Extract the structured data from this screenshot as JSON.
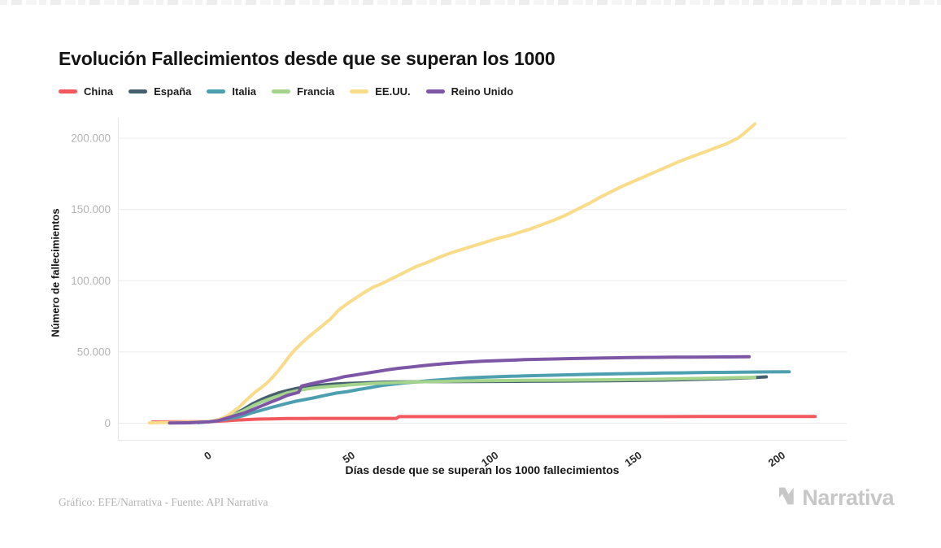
{
  "chart_data": {
    "type": "line",
    "title": "Evolución Fallecimientos desde que se superan los 1000",
    "xlabel": "Días desde que se superan los 1000 fallecimientos",
    "ylabel": "Número de fallecimientos",
    "xlim": [
      -32,
      222
    ],
    "ylim": [
      0,
      212000
    ],
    "grid": true,
    "legend_position": "top-left",
    "xticks": [
      0,
      50,
      100,
      150,
      200
    ],
    "yticks": [
      {
        "value": 0,
        "label": "0"
      },
      {
        "value": 50000,
        "label": "50.000"
      },
      {
        "value": 100000,
        "label": "100.000"
      },
      {
        "value": 150000,
        "label": "150.000"
      },
      {
        "value": 200000,
        "label": "200.000"
      }
    ],
    "series": [
      {
        "name": "China",
        "color": "#f2595f",
        "points": [
          [
            -20,
            800
          ],
          [
            -16,
            900
          ],
          [
            -12,
            950
          ],
          [
            -8,
            1000
          ],
          [
            -4,
            1050
          ],
          [
            0,
            1150
          ],
          [
            3,
            1400
          ],
          [
            6,
            1700
          ],
          [
            9,
            2100
          ],
          [
            12,
            2450
          ],
          [
            15,
            2700
          ],
          [
            18,
            2900
          ],
          [
            21,
            3050
          ],
          [
            24,
            3160
          ],
          [
            27,
            3240
          ],
          [
            30,
            3300
          ],
          [
            34,
            3330
          ],
          [
            40,
            3340
          ],
          [
            48,
            3340
          ],
          [
            56,
            3340
          ],
          [
            65,
            3340
          ],
          [
            66,
            4640
          ],
          [
            72,
            4640
          ],
          [
            80,
            4640
          ],
          [
            90,
            4640
          ],
          [
            100,
            4640
          ],
          [
            110,
            4640
          ],
          [
            120,
            4640
          ],
          [
            130,
            4640
          ],
          [
            140,
            4650
          ],
          [
            150,
            4650
          ],
          [
            160,
            4650
          ],
          [
            170,
            4660
          ],
          [
            180,
            4670
          ],
          [
            190,
            4690
          ],
          [
            200,
            4720
          ],
          [
            211,
            4750
          ]
        ]
      },
      {
        "name": "España",
        "color": "#44606e",
        "points": [
          [
            -8,
            300
          ],
          [
            -4,
            600
          ],
          [
            0,
            1100
          ],
          [
            3,
            2200
          ],
          [
            6,
            4100
          ],
          [
            9,
            6800
          ],
          [
            12,
            10000
          ],
          [
            15,
            13700
          ],
          [
            18,
            16600
          ],
          [
            21,
            19100
          ],
          [
            24,
            21300
          ],
          [
            27,
            22900
          ],
          [
            30,
            24300
          ],
          [
            33,
            25300
          ],
          [
            36,
            26100
          ],
          [
            40,
            26900
          ],
          [
            44,
            27500
          ],
          [
            48,
            27900
          ],
          [
            52,
            28200
          ],
          [
            56,
            28500
          ],
          [
            60,
            28750
          ],
          [
            65,
            28950
          ],
          [
            70,
            29050
          ],
          [
            80,
            29150
          ],
          [
            90,
            29250
          ],
          [
            100,
            29350
          ],
          [
            110,
            29450
          ],
          [
            120,
            29550
          ],
          [
            130,
            29650
          ],
          [
            140,
            29800
          ],
          [
            150,
            30000
          ],
          [
            158,
            30250
          ],
          [
            165,
            30550
          ],
          [
            172,
            30900
          ],
          [
            179,
            31300
          ],
          [
            184,
            31600
          ],
          [
            188,
            31900
          ],
          [
            191,
            32200
          ],
          [
            194,
            32500
          ]
        ]
      },
      {
        "name": "Italia",
        "color": "#4d9fb0",
        "points": [
          [
            -4,
            400
          ],
          [
            0,
            1000
          ],
          [
            3,
            1800
          ],
          [
            6,
            2900
          ],
          [
            9,
            4000
          ],
          [
            12,
            5500
          ],
          [
            15,
            7500
          ],
          [
            18,
            9100
          ],
          [
            21,
            10800
          ],
          [
            24,
            12400
          ],
          [
            27,
            13900
          ],
          [
            30,
            15400
          ],
          [
            33,
            16550
          ],
          [
            36,
            17700
          ],
          [
            40,
            19450
          ],
          [
            44,
            21100
          ],
          [
            48,
            22200
          ],
          [
            52,
            23700
          ],
          [
            56,
            25000
          ],
          [
            60,
            26400
          ],
          [
            64,
            27400
          ],
          [
            68,
            28300
          ],
          [
            72,
            29000
          ],
          [
            76,
            29800
          ],
          [
            80,
            30400
          ],
          [
            85,
            31100
          ],
          [
            90,
            31800
          ],
          [
            95,
            32250
          ],
          [
            100,
            32600
          ],
          [
            105,
            32900
          ],
          [
            110,
            33200
          ],
          [
            116,
            33500
          ],
          [
            122,
            33800
          ],
          [
            128,
            34100
          ],
          [
            134,
            34400
          ],
          [
            140,
            34600
          ],
          [
            146,
            34800
          ],
          [
            152,
            35000
          ],
          [
            158,
            35200
          ],
          [
            164,
            35350
          ],
          [
            170,
            35500
          ],
          [
            176,
            35650
          ],
          [
            182,
            35750
          ],
          [
            188,
            35900
          ],
          [
            195,
            36000
          ],
          [
            202,
            36100
          ]
        ]
      },
      {
        "name": "Francia",
        "color": "#a4d38c",
        "points": [
          [
            -2,
            700
          ],
          [
            0,
            1100
          ],
          [
            3,
            2300
          ],
          [
            6,
            4000
          ],
          [
            9,
            6500
          ],
          [
            12,
            8900
          ],
          [
            15,
            12200
          ],
          [
            18,
            14900
          ],
          [
            21,
            17200
          ],
          [
            24,
            19300
          ],
          [
            27,
            21300
          ],
          [
            30,
            22600
          ],
          [
            34,
            24100
          ],
          [
            38,
            25100
          ],
          [
            42,
            25800
          ],
          [
            46,
            26400
          ],
          [
            50,
            27100
          ],
          [
            54,
            27500
          ],
          [
            58,
            28000
          ],
          [
            62,
            28300
          ],
          [
            66,
            28600
          ],
          [
            70,
            28900
          ],
          [
            75,
            29100
          ],
          [
            80,
            29300
          ],
          [
            85,
            29500
          ],
          [
            90,
            29700
          ],
          [
            95,
            29800
          ],
          [
            100,
            29900
          ],
          [
            110,
            30100
          ],
          [
            120,
            30200
          ],
          [
            130,
            30300
          ],
          [
            140,
            30450
          ],
          [
            148,
            30650
          ],
          [
            156,
            30900
          ],
          [
            164,
            31150
          ],
          [
            172,
            31450
          ],
          [
            180,
            31800
          ],
          [
            185,
            32000
          ],
          [
            190,
            32200
          ]
        ]
      },
      {
        "name": "EE.UU.",
        "color": "#f8dc8a",
        "points": [
          [
            -21,
            250
          ],
          [
            -17,
            400
          ],
          [
            -13,
            550
          ],
          [
            -9,
            700
          ],
          [
            -5,
            850
          ],
          [
            0,
            1200
          ],
          [
            2,
            2000
          ],
          [
            4,
            3200
          ],
          [
            6,
            5100
          ],
          [
            8,
            7900
          ],
          [
            10,
            10900
          ],
          [
            12,
            14700
          ],
          [
            14,
            18600
          ],
          [
            16,
            22100
          ],
          [
            18,
            25000
          ],
          [
            20,
            28300
          ],
          [
            22,
            32400
          ],
          [
            24,
            37100
          ],
          [
            26,
            42300
          ],
          [
            28,
            47700
          ],
          [
            30,
            52200
          ],
          [
            33,
            58000
          ],
          [
            36,
            63200
          ],
          [
            39,
            68000
          ],
          [
            42,
            73000
          ],
          [
            45,
            79500
          ],
          [
            48,
            84000
          ],
          [
            51,
            88000
          ],
          [
            54,
            92000
          ],
          [
            57,
            95500
          ],
          [
            60,
            98000
          ],
          [
            63,
            101000
          ],
          [
            66,
            104000
          ],
          [
            69,
            107000
          ],
          [
            72,
            110000
          ],
          [
            76,
            113000
          ],
          [
            80,
            116500
          ],
          [
            84,
            119500
          ],
          [
            88,
            122000
          ],
          [
            92,
            124500
          ],
          [
            96,
            127000
          ],
          [
            100,
            129500
          ],
          [
            104,
            131500
          ],
          [
            108,
            134000
          ],
          [
            112,
            136500
          ],
          [
            116,
            139500
          ],
          [
            120,
            142500
          ],
          [
            124,
            146000
          ],
          [
            128,
            150000
          ],
          [
            132,
            154000
          ],
          [
            136,
            158500
          ],
          [
            140,
            162500
          ],
          [
            144,
            166500
          ],
          [
            148,
            170000
          ],
          [
            152,
            173500
          ],
          [
            156,
            177000
          ],
          [
            160,
            180500
          ],
          [
            164,
            184000
          ],
          [
            168,
            187000
          ],
          [
            172,
            190000
          ],
          [
            176,
            193000
          ],
          [
            180,
            196000
          ],
          [
            184,
            200000
          ],
          [
            186,
            203000
          ],
          [
            188,
            206500
          ],
          [
            190,
            210000
          ]
        ]
      },
      {
        "name": "Reino Unido",
        "color": "#7d56a5",
        "points": [
          [
            -14,
            150
          ],
          [
            -10,
            250
          ],
          [
            -7,
            350
          ],
          [
            -4,
            600
          ],
          [
            0,
            1000
          ],
          [
            3,
            1800
          ],
          [
            6,
            3600
          ],
          [
            9,
            5400
          ],
          [
            12,
            7100
          ],
          [
            15,
            9600
          ],
          [
            18,
            12100
          ],
          [
            21,
            14600
          ],
          [
            24,
            16900
          ],
          [
            27,
            19500
          ],
          [
            30,
            21100
          ],
          [
            31,
            21700
          ],
          [
            32,
            26100
          ],
          [
            35,
            27500
          ],
          [
            38,
            28900
          ],
          [
            41,
            30100
          ],
          [
            44,
            31200
          ],
          [
            47,
            32700
          ],
          [
            50,
            33600
          ],
          [
            54,
            34900
          ],
          [
            58,
            36200
          ],
          [
            62,
            37500
          ],
          [
            66,
            38600
          ],
          [
            70,
            39400
          ],
          [
            74,
            40300
          ],
          [
            78,
            41100
          ],
          [
            82,
            41800
          ],
          [
            86,
            42400
          ],
          [
            90,
            42900
          ],
          [
            95,
            43500
          ],
          [
            100,
            43900
          ],
          [
            105,
            44250
          ],
          [
            110,
            44600
          ],
          [
            115,
            44850
          ],
          [
            120,
            45100
          ],
          [
            126,
            45350
          ],
          [
            132,
            45600
          ],
          [
            138,
            45850
          ],
          [
            144,
            46000
          ],
          [
            150,
            46150
          ],
          [
            156,
            46250
          ],
          [
            162,
            46350
          ],
          [
            168,
            46400
          ],
          [
            174,
            46450
          ],
          [
            180,
            46500
          ],
          [
            184,
            46550
          ],
          [
            188,
            46600
          ]
        ]
      }
    ]
  },
  "footer": {
    "credit": "Gráfico: EFE/Narrativa - Fuente: API Narrativa",
    "brand": "Narrativa"
  },
  "style": {
    "grid_color": "#ececec",
    "spine_color": "#e7e7e7",
    "y_tick_color": "#b4b4b4",
    "x_tick_color": "#2a2a2a",
    "brand_color": "#c7c7c7"
  }
}
